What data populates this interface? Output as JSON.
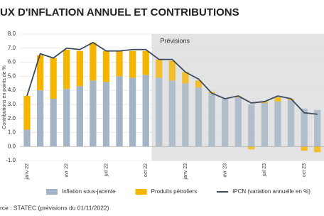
{
  "chart_data": {
    "type": "stacked-bar-line",
    "title": "UX D'INFLATION ANNUEL ET CONTRIBUTIONS",
    "y_label": "Contributions en points de %",
    "source": "rce : STATEC (prévisions du 01/11/2022)",
    "categories": [
      "janv 22",
      null,
      null,
      "avr 22",
      null,
      null,
      "juil 22",
      null,
      null,
      "oct 22",
      null,
      null,
      "janv 23",
      null,
      null,
      "avr 23",
      null,
      null,
      "juil 23",
      null,
      null,
      "oct 23",
      null
    ],
    "series": [
      {
        "name": "Inflation sous-jacente",
        "kind": "bar",
        "color": "#a3b4c6",
        "values": [
          1.2,
          4.0,
          3.4,
          4.1,
          4.3,
          4.7,
          4.6,
          5.0,
          4.9,
          5.1,
          4.9,
          4.7,
          4.5,
          4.2,
          3.8,
          3.4,
          3.5,
          3.0,
          3.1,
          3.2,
          3.3,
          2.7,
          2.6
        ]
      },
      {
        "name": "Produits pétroliers",
        "kind": "bar",
        "color": "#f5b400",
        "values": [
          2.4,
          2.5,
          2.9,
          2.8,
          2.5,
          2.7,
          2.2,
          1.8,
          1.9,
          1.7,
          1.3,
          1.4,
          0.8,
          0.5,
          0.1,
          0.0,
          0.1,
          -0.2,
          0.1,
          0.3,
          0.1,
          -0.3,
          -0.4
        ]
      },
      {
        "name": "IPCN (variation annuelle en %)",
        "kind": "line",
        "color": "#3d4b5e",
        "values": [
          3.6,
          6.6,
          6.3,
          7.0,
          6.9,
          7.4,
          6.8,
          6.8,
          6.9,
          6.9,
          6.2,
          6.2,
          5.3,
          4.8,
          3.8,
          3.4,
          3.6,
          3.1,
          3.2,
          3.6,
          3.4,
          2.4,
          2.3
        ]
      }
    ],
    "forecast": {
      "label": "Prévisions",
      "start_index": 10,
      "color": "#e3e3e3"
    },
    "ylim": [
      -1.0,
      8.0
    ],
    "yticks": [
      {
        "value": -1,
        "label": "-1.0"
      },
      {
        "value": 0,
        "label": "0.0"
      },
      {
        "value": 1,
        "label": "1.0"
      },
      {
        "value": 2,
        "label": "2.0"
      },
      {
        "value": 3,
        "label": "3.0"
      },
      {
        "value": 4,
        "label": "4.0"
      },
      {
        "value": 5,
        "label": "5.0"
      },
      {
        "value": 6,
        "label": "6.0"
      },
      {
        "value": 7,
        "label": "7.0"
      },
      {
        "value": 8,
        "label": "8.0"
      }
    ],
    "grid": true
  }
}
